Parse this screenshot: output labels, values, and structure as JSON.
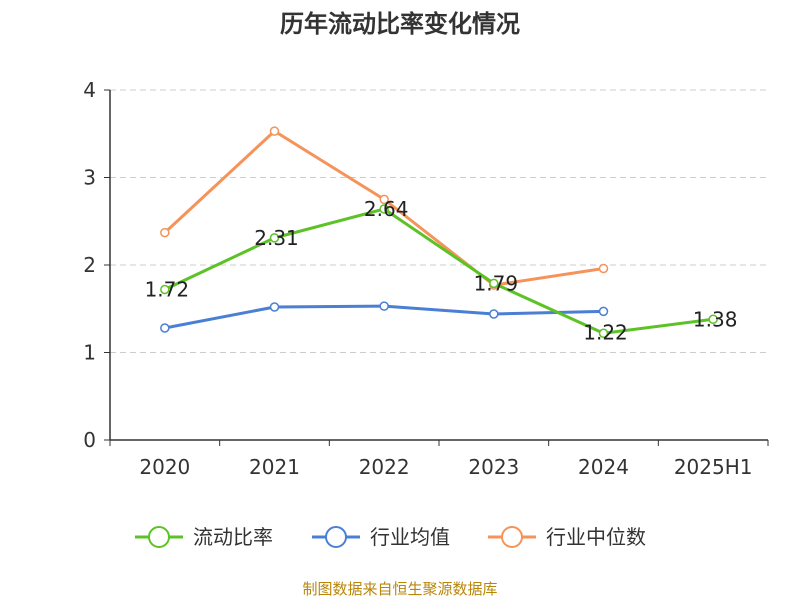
{
  "chart_data": {
    "type": "line",
    "title": "历年流动比率变化情况",
    "categories": [
      "2020",
      "2021",
      "2022",
      "2023",
      "2024",
      "2025H1"
    ],
    "ylim": [
      0,
      4
    ],
    "yticks": [
      "0",
      "1",
      "2",
      "3",
      "4"
    ],
    "grid": true,
    "legend_position": "bottom",
    "series": [
      {
        "name": "流动比率",
        "color": "#5cc226",
        "values": [
          1.72,
          2.31,
          2.64,
          1.79,
          1.22,
          1.38
        ],
        "labels": [
          "1.72",
          "2.31",
          "2.64",
          "1.79",
          "1.22",
          "1.38"
        ]
      },
      {
        "name": "行业均值",
        "color": "#4a7fd4",
        "values": [
          1.28,
          1.52,
          1.53,
          1.44,
          1.47,
          null
        ]
      },
      {
        "name": "行业中位数",
        "color": "#f5935a",
        "values": [
          2.37,
          3.53,
          2.75,
          1.77,
          1.96,
          null
        ]
      }
    ]
  },
  "source": "制图数据来自恒生聚源数据库"
}
